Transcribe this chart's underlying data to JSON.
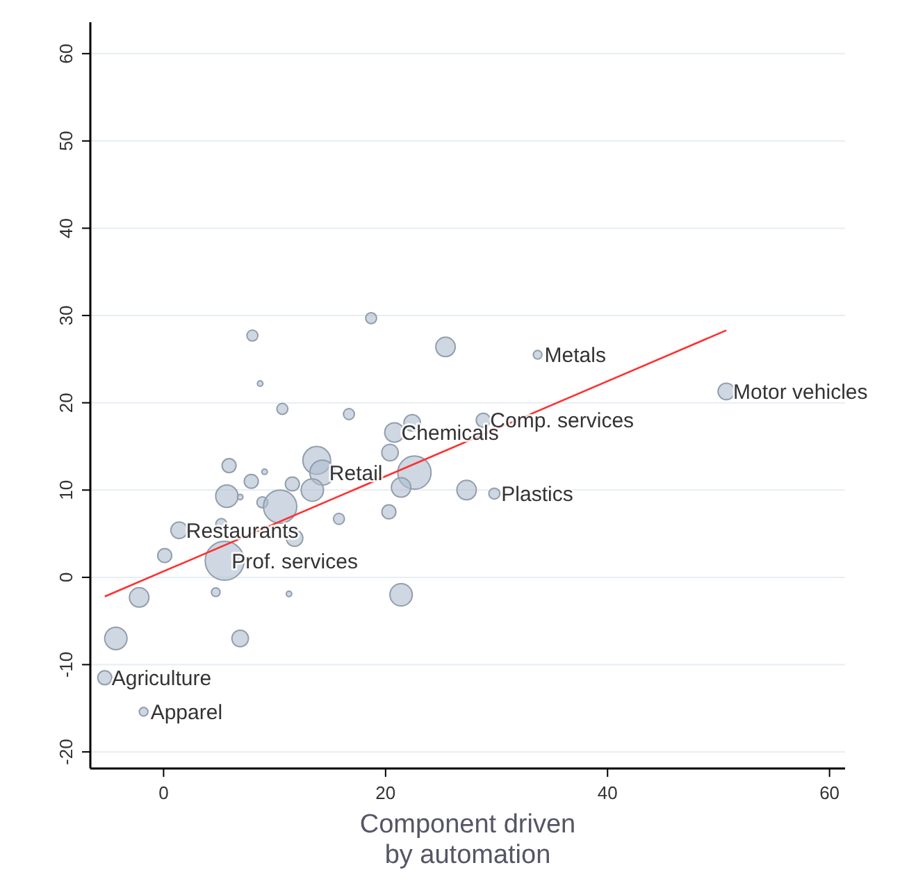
{
  "chart_data": {
    "type": "bubble",
    "xlabel": "Component driven\nby automation",
    "xlim": [
      -6.6,
      61.4
    ],
    "ylim": [
      -21.9,
      63.6
    ],
    "xticks": [
      0,
      20,
      40,
      60
    ],
    "yticks": [
      -20,
      -10,
      0,
      10,
      20,
      30,
      40,
      50,
      60
    ],
    "grid": "y",
    "series": [
      {
        "color": "#aebdce",
        "x": [
          18.7,
          8.0,
          25.4,
          8.7,
          10.7,
          16.7,
          20.8,
          22.4,
          20.4,
          13.8,
          14.3,
          22.6,
          5.9,
          9.1,
          7.9,
          11.6,
          13.4,
          21.4,
          27.3,
          5.7,
          6.9,
          8.9,
          10.5,
          20.3,
          15.8,
          1.4,
          5.2,
          11.8,
          0.1,
          5.5,
          4.7,
          11.3,
          -2.2,
          21.4,
          33.7,
          50.7,
          28.8,
          29.8,
          -4.3,
          6.9,
          -5.3,
          -1.8
        ],
        "values": [
          29.7,
          27.7,
          26.4,
          22.2,
          19.3,
          18.7,
          16.6,
          17.7,
          14.3,
          13.4,
          12.0,
          12.0,
          12.8,
          12.1,
          11.0,
          10.7,
          10.0,
          10.3,
          10.0,
          9.3,
          9.2,
          8.6,
          8.1,
          7.5,
          6.7,
          5.4,
          6.1,
          4.5,
          2.5,
          1.9,
          -1.7,
          -1.9,
          -2.3,
          -2.0,
          25.5,
          21.3,
          18.0,
          9.6,
          -7.0,
          -7.0,
          -11.5,
          -15.4
        ],
        "sizes": [
          0.08,
          0.08,
          0.25,
          0.02,
          0.08,
          0.08,
          0.25,
          0.18,
          0.18,
          0.51,
          0.41,
          0.73,
          0.13,
          0.02,
          0.13,
          0.13,
          0.33,
          0.25,
          0.25,
          0.33,
          0.02,
          0.08,
          0.73,
          0.13,
          0.08,
          0.18,
          0.08,
          0.18,
          0.13,
          1,
          0.05,
          0.02,
          0.25,
          0.33,
          0.05,
          0.18,
          0.13,
          0.08,
          0.33,
          0.18,
          0.13,
          0.05
        ]
      },
      {
        "type": "line",
        "color": "#ff3030",
        "x": [
          -5.3,
          50.7
        ],
        "values": [
          -2.2,
          28.3
        ]
      }
    ],
    "annotations": [
      {
        "text": "Metals",
        "x": 33.7,
        "y": 25.5
      },
      {
        "text": "Motor vehicles",
        "x": 50.7,
        "y": 21.3
      },
      {
        "text": "Comp. services",
        "x": 28.8,
        "y": 18.0
      },
      {
        "text": "Chemicals",
        "x": 20.8,
        "y": 16.6
      },
      {
        "text": "Plastics",
        "x": 29.8,
        "y": 9.6
      },
      {
        "text": "Retail",
        "x": 14.3,
        "y": 12.0
      },
      {
        "text": "Restaurants",
        "x": 1.4,
        "y": 5.4
      },
      {
        "text": "Prof. services",
        "x": 5.5,
        "y": 1.9
      },
      {
        "text": "Agriculture",
        "x": -5.3,
        "y": -11.5
      },
      {
        "text": "Apparel",
        "x": -1.8,
        "y": -15.4
      }
    ]
  }
}
